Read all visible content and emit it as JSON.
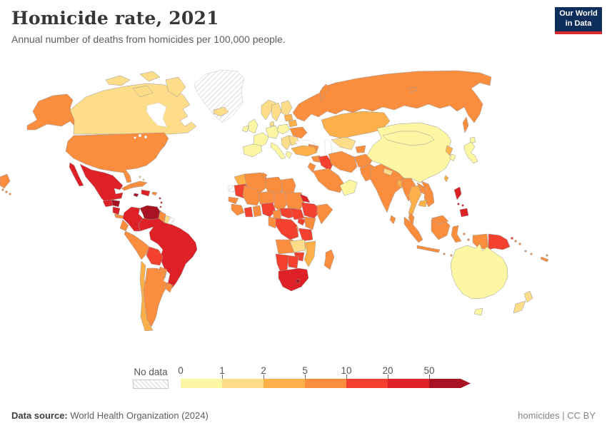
{
  "header": {
    "title": "Homicide rate, 2021",
    "subtitle": "Annual number of deaths from homicides per 100,000 people.",
    "logo": {
      "line1": "Our World",
      "line2": "in Data"
    }
  },
  "theme": {
    "logo_bg": "#0d2e5a",
    "logo_red": "#d7282f",
    "map_border": "#979797",
    "title_color": "#373737",
    "text_gray": "#5e5e5e"
  },
  "footer": {
    "source_label": "Data source:",
    "source_value": "World Health Organization (2024)",
    "license": "homicides | CC BY"
  },
  "chart_data": {
    "type": "choropleth",
    "map": "world",
    "title": "Homicide rate, 2021",
    "unit": "deaths from homicides per 100,000 people",
    "year": "2021",
    "legend": {
      "no_data_label": "No data",
      "tick_labels": [
        "0",
        "1",
        "2",
        "5",
        "10",
        "20",
        "50"
      ],
      "bins": [
        {
          "range": "0-1",
          "color": "#fdf6a3"
        },
        {
          "range": "1-2",
          "color": "#fedd8a"
        },
        {
          "range": "2-5",
          "color": "#fdb04a"
        },
        {
          "range": "5-10",
          "color": "#fb8d3e"
        },
        {
          "range": "10-20",
          "color": "#f4402e"
        },
        {
          "range": "20-50",
          "color": "#de2127"
        },
        {
          "range": "50+",
          "color": "#a81323"
        }
      ],
      "no_data_pattern": "gray-diagonal-hatch"
    },
    "regions": [
      {
        "id": "alaska",
        "bin": 4
      },
      {
        "id": "usa",
        "bin": 4
      },
      {
        "id": "hawaii",
        "bin": 4
      },
      {
        "id": "canada",
        "bin": 2
      },
      {
        "id": "greenland",
        "bin": "no-data"
      },
      {
        "id": "iceland",
        "bin": 2
      },
      {
        "id": "mexico",
        "bin": 6
      },
      {
        "id": "guatemala",
        "bin": 6
      },
      {
        "id": "honduras",
        "bin": 7
      },
      {
        "id": "nicaragua",
        "bin": 6
      },
      {
        "id": "costa-rica-panama",
        "bin": 4
      },
      {
        "id": "cuba",
        "bin": 4
      },
      {
        "id": "jamaica",
        "bin": 7
      },
      {
        "id": "hispaniola",
        "bin": 6
      },
      {
        "id": "puerto-rico",
        "bin": 4
      },
      {
        "id": "lesser-antilles",
        "bin": 6
      },
      {
        "id": "trinidad",
        "bin": 6
      },
      {
        "id": "bahamas",
        "bin": 2
      },
      {
        "id": "colombia",
        "bin": 6
      },
      {
        "id": "venezuela",
        "bin": 7
      },
      {
        "id": "guyana",
        "bin": 4
      },
      {
        "id": "suriname",
        "bin": 2
      },
      {
        "id": "french-guiana",
        "bin": "no-data"
      },
      {
        "id": "ecuador",
        "bin": 4
      },
      {
        "id": "peru",
        "bin": 4
      },
      {
        "id": "brazil",
        "bin": 6
      },
      {
        "id": "bolivia",
        "bin": 5
      },
      {
        "id": "paraguay",
        "bin": 4
      },
      {
        "id": "chile",
        "bin": 3
      },
      {
        "id": "argentina",
        "bin": 4
      },
      {
        "id": "uruguay",
        "bin": 4
      },
      {
        "id": "norway",
        "bin": 2
      },
      {
        "id": "sweden",
        "bin": 2
      },
      {
        "id": "finland",
        "bin": 2
      },
      {
        "id": "denmark",
        "bin": 2
      },
      {
        "id": "uk",
        "bin": 1
      },
      {
        "id": "ireland",
        "bin": 1
      },
      {
        "id": "france",
        "bin": 1
      },
      {
        "id": "iberia",
        "bin": 1
      },
      {
        "id": "germany-central",
        "bin": 1
      },
      {
        "id": "italy",
        "bin": 1
      },
      {
        "id": "poland",
        "bin": 1
      },
      {
        "id": "balkans",
        "bin": 2
      },
      {
        "id": "greece",
        "bin": 1
      },
      {
        "id": "romania-bulgaria",
        "bin": 2
      },
      {
        "id": "belarus",
        "bin": 3
      },
      {
        "id": "baltics",
        "bin": 3
      },
      {
        "id": "ukraine",
        "bin": 4
      },
      {
        "id": "russia",
        "bin": 4
      },
      {
        "id": "caucasus",
        "bin": 4
      },
      {
        "id": "turkey",
        "bin": 3
      },
      {
        "id": "syria",
        "bin": 4
      },
      {
        "id": "iraq",
        "bin": 5
      },
      {
        "id": "jordan-israel",
        "bin": 4
      },
      {
        "id": "saudi-arabia",
        "bin": 4
      },
      {
        "id": "yemen-oman",
        "bin": 1
      },
      {
        "id": "iran",
        "bin": 4
      },
      {
        "id": "afghanistan",
        "bin": 4
      },
      {
        "id": "pakistan",
        "bin": 4
      },
      {
        "id": "turkmen-uzbek",
        "bin": 2
      },
      {
        "id": "tajik-kyrgyz",
        "bin": 4
      },
      {
        "id": "kazakhstan",
        "bin": 3
      },
      {
        "id": "india",
        "bin": 4
      },
      {
        "id": "sri-lanka",
        "bin": 4
      },
      {
        "id": "nepal",
        "bin": 2
      },
      {
        "id": "bangladesh",
        "bin": 3
      },
      {
        "id": "china",
        "bin": 1
      },
      {
        "id": "mongolia",
        "bin": 1
      },
      {
        "id": "north-korea",
        "bin": 3
      },
      {
        "id": "south-korea",
        "bin": 1
      },
      {
        "id": "japan",
        "bin": 1
      },
      {
        "id": "taiwan",
        "bin": 3
      },
      {
        "id": "myanmar",
        "bin": 4
      },
      {
        "id": "thailand",
        "bin": 3
      },
      {
        "id": "laos",
        "bin": 4
      },
      {
        "id": "vietnam",
        "bin": 4
      },
      {
        "id": "cambodia",
        "bin": 3
      },
      {
        "id": "malaysia",
        "bin": 4
      },
      {
        "id": "indonesia",
        "bin": 4
      },
      {
        "id": "philippines",
        "bin": 6
      },
      {
        "id": "papua-new-guinea",
        "bin": 5
      },
      {
        "id": "solomon-islands",
        "bin": 4
      },
      {
        "id": "vanuatu-fiji",
        "bin": 4
      },
      {
        "id": "new-caledonia",
        "bin": 4
      },
      {
        "id": "australia",
        "bin": 1
      },
      {
        "id": "new-zealand",
        "bin": 2
      },
      {
        "id": "morocco",
        "bin": 3
      },
      {
        "id": "western-sahara",
        "bin": "no-data"
      },
      {
        "id": "algeria",
        "bin": 4
      },
      {
        "id": "tunisia",
        "bin": 4
      },
      {
        "id": "libya",
        "bin": 4
      },
      {
        "id": "egypt",
        "bin": 4
      },
      {
        "id": "mauritania",
        "bin": 5
      },
      {
        "id": "senegal",
        "bin": 4
      },
      {
        "id": "mali",
        "bin": 4
      },
      {
        "id": "guinea-group",
        "bin": 4
      },
      {
        "id": "ivory-coast",
        "bin": 5
      },
      {
        "id": "ghana-togo-benin",
        "bin": 4
      },
      {
        "id": "niger",
        "bin": 4
      },
      {
        "id": "nigeria",
        "bin": 5
      },
      {
        "id": "chad",
        "bin": 4
      },
      {
        "id": "sudan",
        "bin": 4
      },
      {
        "id": "eritrea",
        "bin": 6
      },
      {
        "id": "ethiopia",
        "bin": 5
      },
      {
        "id": "somalia",
        "bin": 4
      },
      {
        "id": "cameroon",
        "bin": 4
      },
      {
        "id": "central-african-republic",
        "bin": 5
      },
      {
        "id": "south-sudan",
        "bin": 5
      },
      {
        "id": "uganda",
        "bin": 5
      },
      {
        "id": "kenya",
        "bin": 4
      },
      {
        "id": "congo-gabon",
        "bin": 4
      },
      {
        "id": "drc",
        "bin": 5
      },
      {
        "id": "rwanda-burundi",
        "bin": 4
      },
      {
        "id": "tanzania",
        "bin": 5
      },
      {
        "id": "angola",
        "bin": 4
      },
      {
        "id": "zambia",
        "bin": 2
      },
      {
        "id": "malawi",
        "bin": 1
      },
      {
        "id": "mozambique",
        "bin": 3
      },
      {
        "id": "zimbabwe",
        "bin": 5
      },
      {
        "id": "botswana",
        "bin": 5
      },
      {
        "id": "namibia",
        "bin": 5
      },
      {
        "id": "south-africa",
        "bin": 6
      },
      {
        "id": "lesotho",
        "bin": 7
      },
      {
        "id": "madagascar",
        "bin": 4
      }
    ]
  }
}
